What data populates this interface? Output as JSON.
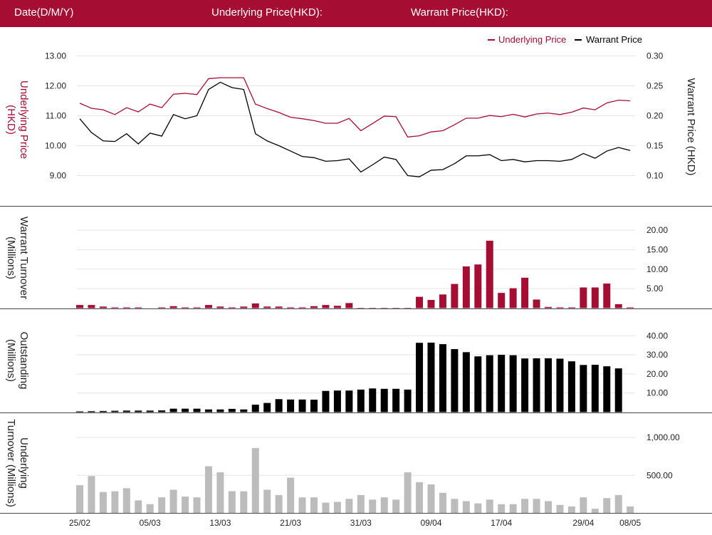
{
  "header": {
    "date_label": "Date(D/M/Y)",
    "underlying_label": "Underlying Price(HKD):",
    "warrant_label": "Warrant Price(HKD):"
  },
  "colors": {
    "header": "#a50d33",
    "underlying": "#a50d33",
    "warrant": "#000000",
    "underlying_turnover": "#bcbcbc"
  },
  "chart_data": [
    {
      "type": "line",
      "legend": [
        "Underlying Price",
        "Warrant Price"
      ],
      "legend_placement": "top-right",
      "ylabel_left": "Underlying Price (HKD)",
      "ylabel_right": "Warrant  Price (HKD)",
      "yticks_left": [
        "13.00",
        "12.00",
        "11.00",
        "10.00",
        "9.00"
      ],
      "yticks_right": [
        "0.30",
        "0.25",
        "0.20",
        "0.15",
        "0.10"
      ],
      "ylim_left": [
        8.0,
        13.0
      ],
      "ylim_right": [
        0.05,
        0.3
      ],
      "grid": true,
      "series": [
        {
          "name": "Underlying Price",
          "values": [
            11.42,
            11.25,
            11.2,
            11.04,
            11.27,
            11.13,
            11.39,
            11.27,
            11.72,
            11.75,
            11.71,
            12.24,
            12.27,
            12.27,
            12.27,
            11.39,
            11.24,
            11.11,
            10.95,
            10.9,
            10.84,
            10.75,
            10.75,
            10.91,
            10.5,
            10.74,
            10.99,
            10.97,
            10.29,
            10.33,
            10.46,
            10.5,
            10.7,
            10.92,
            10.92,
            11.01,
            10.97,
            11.05,
            10.96,
            11.06,
            11.09,
            11.04,
            11.12,
            11.26,
            11.2,
            11.43,
            11.52,
            11.5
          ]
        },
        {
          "name": "Warrant Price",
          "values": [
            0.195,
            0.172,
            0.158,
            0.157,
            0.17,
            0.153,
            0.171,
            0.166,
            0.202,
            0.195,
            0.2,
            0.244,
            0.256,
            0.247,
            0.244,
            0.17,
            0.158,
            0.15,
            0.141,
            0.132,
            0.13,
            0.124,
            0.125,
            0.128,
            0.106,
            0.118,
            0.131,
            0.127,
            0.1,
            0.098,
            0.109,
            0.11,
            0.12,
            0.133,
            0.133,
            0.135,
            0.125,
            0.127,
            0.123,
            0.125,
            0.125,
            0.124,
            0.127,
            0.137,
            0.129,
            0.141,
            0.147,
            0.142
          ]
        }
      ]
    },
    {
      "type": "bar",
      "ylabel": "Warrant  Turnover (Millions)",
      "yticks": [
        "20.00",
        "15.00",
        "10.00",
        "5.00"
      ],
      "ylim": [
        0,
        22
      ],
      "values": [
        0.8,
        0.8,
        0.4,
        0.2,
        0.2,
        0.2,
        0,
        0.2,
        0.5,
        0.2,
        0.2,
        0.8,
        0.4,
        0.2,
        0.4,
        1.2,
        0.4,
        0.4,
        0.2,
        0.2,
        0.5,
        0.8,
        0.6,
        1.3,
        0.1,
        0.1,
        0.1,
        0.1,
        0.1,
        2.9,
        2.1,
        3.5,
        6.2,
        10.7,
        11.2,
        17.3,
        3.9,
        5.1,
        7.8,
        2.2,
        0.3,
        0.2,
        0.2,
        5.3,
        5.3,
        6.3,
        1,
        0.2
      ]
    },
    {
      "type": "bar",
      "ylabel": "Outstanding (Millions)",
      "yticks": [
        "40.00",
        "30.00",
        "20.00",
        "10.00"
      ],
      "ylim": [
        0,
        42
      ],
      "values": [
        0.4,
        0.5,
        0.6,
        0.7,
        0.8,
        0.8,
        0.8,
        0.9,
        1.8,
        1.8,
        1.8,
        1.4,
        1.4,
        1.7,
        1.4,
        3.9,
        4.8,
        6.8,
        6.6,
        6.6,
        6.5,
        11.1,
        11.3,
        11.3,
        11.8,
        12.4,
        12.2,
        12.2,
        11.8,
        36.3,
        36.4,
        35.6,
        33,
        31.4,
        29.2,
        29.8,
        30,
        29.8,
        28.1,
        28.2,
        28.2,
        28,
        26.6,
        24.7,
        24.8,
        24,
        22.9,
        0
      ]
    },
    {
      "type": "bar",
      "ylabel": "Underlying Turnover (Millions)",
      "yticks": [
        "1,000.00",
        "500.00"
      ],
      "ylim": [
        0,
        1100
      ],
      "xticks": [
        "25/02",
        "05/03",
        "13/03",
        "21/03",
        "31/03",
        "09/04",
        "17/04",
        "29/04",
        "08/05"
      ],
      "xtick_positions": [
        0,
        6,
        12,
        18,
        24,
        30,
        36,
        43,
        47
      ],
      "values": [
        370,
        490,
        280,
        290,
        330,
        170,
        120,
        210,
        310,
        220,
        210,
        620,
        540,
        290,
        290,
        860,
        310,
        240,
        470,
        210,
        210,
        140,
        150,
        190,
        240,
        180,
        210,
        180,
        540,
        410,
        380,
        270,
        190,
        160,
        130,
        180,
        120,
        120,
        190,
        190,
        160,
        110,
        90,
        210,
        60,
        200,
        240,
        90
      ]
    }
  ]
}
